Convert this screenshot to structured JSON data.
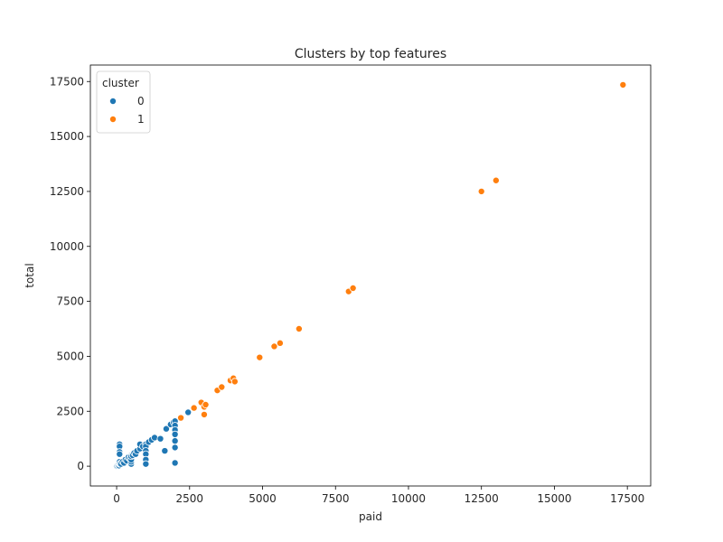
{
  "chart_data": {
    "type": "scatter",
    "title": "Clusters by top features",
    "xlabel": "paid",
    "ylabel": "total",
    "xlim": [
      -900,
      18300
    ],
    "ylim": [
      -900,
      18250
    ],
    "xticks": [
      0,
      2500,
      5000,
      7500,
      10000,
      12500,
      15000,
      17500
    ],
    "yticks": [
      0,
      2500,
      5000,
      7500,
      10000,
      12500,
      15000,
      17500
    ],
    "grid": false,
    "legend": {
      "title": "cluster",
      "placement": "top-left"
    },
    "series": [
      {
        "name": "0",
        "color": "#1f77b4",
        "points": [
          [
            0,
            0
          ],
          [
            20,
            20
          ],
          [
            50,
            50
          ],
          [
            80,
            30
          ],
          [
            100,
            100
          ],
          [
            100,
            1000
          ],
          [
            100,
            900
          ],
          [
            100,
            650
          ],
          [
            100,
            550
          ],
          [
            100,
            200
          ],
          [
            120,
            120
          ],
          [
            150,
            100
          ],
          [
            200,
            200
          ],
          [
            250,
            150
          ],
          [
            300,
            300
          ],
          [
            350,
            250
          ],
          [
            400,
            400
          ],
          [
            450,
            350
          ],
          [
            500,
            500
          ],
          [
            500,
            100
          ],
          [
            500,
            200
          ],
          [
            500,
            300
          ],
          [
            500,
            450
          ],
          [
            550,
            500
          ],
          [
            600,
            600
          ],
          [
            650,
            550
          ],
          [
            700,
            700
          ],
          [
            800,
            800
          ],
          [
            800,
            1000
          ],
          [
            900,
            900
          ],
          [
            1000,
            1000
          ],
          [
            1000,
            900
          ],
          [
            1000,
            700
          ],
          [
            1000,
            550
          ],
          [
            1000,
            300
          ],
          [
            1000,
            100
          ],
          [
            1100,
            1100
          ],
          [
            1200,
            1200
          ],
          [
            1300,
            1300
          ],
          [
            1500,
            1250
          ],
          [
            1650,
            700
          ],
          [
            1700,
            1700
          ],
          [
            1850,
            1900
          ],
          [
            1950,
            2000
          ],
          [
            2000,
            2050
          ],
          [
            2000,
            1850
          ],
          [
            2000,
            1650
          ],
          [
            2000,
            1450
          ],
          [
            2000,
            1150
          ],
          [
            2000,
            850
          ],
          [
            2000,
            150
          ],
          [
            2450,
            2450
          ]
        ]
      },
      {
        "name": "1",
        "color": "#ff7f0e",
        "points": [
          [
            2200,
            2200
          ],
          [
            2650,
            2650
          ],
          [
            2900,
            2900
          ],
          [
            3000,
            2700
          ],
          [
            3000,
            2350
          ],
          [
            3050,
            2800
          ],
          [
            3450,
            3450
          ],
          [
            3600,
            3600
          ],
          [
            3900,
            3900
          ],
          [
            4000,
            4000
          ],
          [
            4050,
            3850
          ],
          [
            4900,
            4950
          ],
          [
            5400,
            5450
          ],
          [
            5600,
            5600
          ],
          [
            6250,
            6250
          ],
          [
            7950,
            7950
          ],
          [
            8100,
            8100
          ],
          [
            12500,
            12500
          ],
          [
            13000,
            13000
          ],
          [
            17350,
            17350
          ]
        ]
      }
    ]
  }
}
